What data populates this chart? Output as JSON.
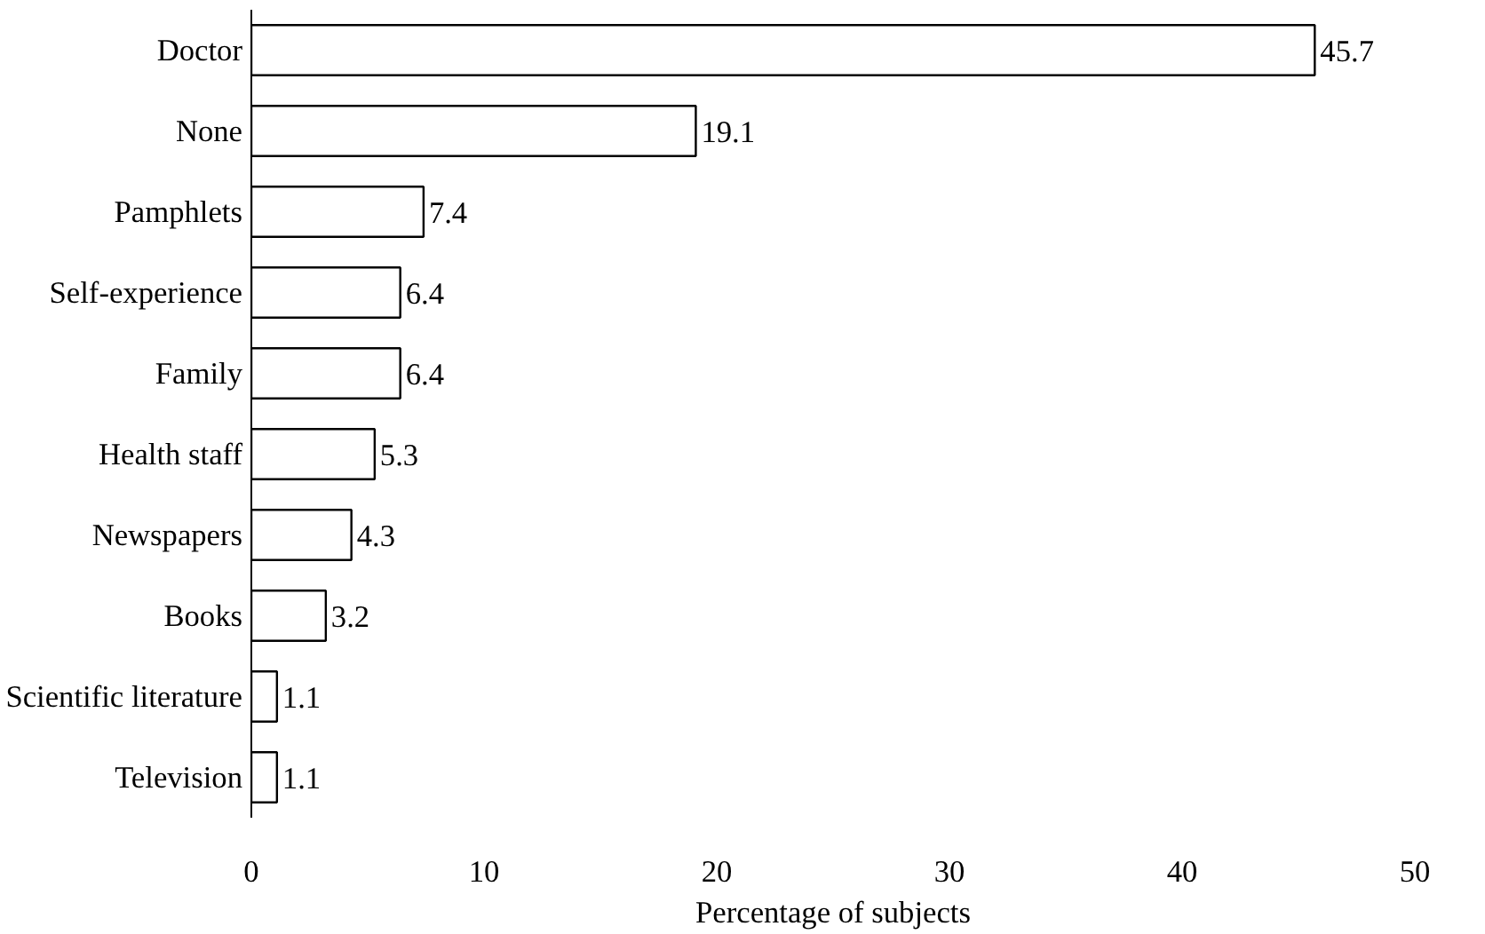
{
  "chart_data": {
    "type": "bar",
    "orientation": "horizontal",
    "xlabel": "Percentage of subjects",
    "categories": [
      "Doctor",
      "None",
      "Pamphlets",
      "Self-experience",
      "Family",
      "Health staff",
      "Newspapers",
      "Books",
      "Scientific literature",
      "Television"
    ],
    "values": [
      45.7,
      19.1,
      7.4,
      6.4,
      6.4,
      5.3,
      4.3,
      3.2,
      1.1,
      1.1
    ],
    "color": "#ffffff",
    "xlim": [
      0,
      50
    ],
    "xticks": [
      0,
      10,
      20,
      30,
      40,
      50
    ],
    "data_labels": true,
    "grid": false
  }
}
